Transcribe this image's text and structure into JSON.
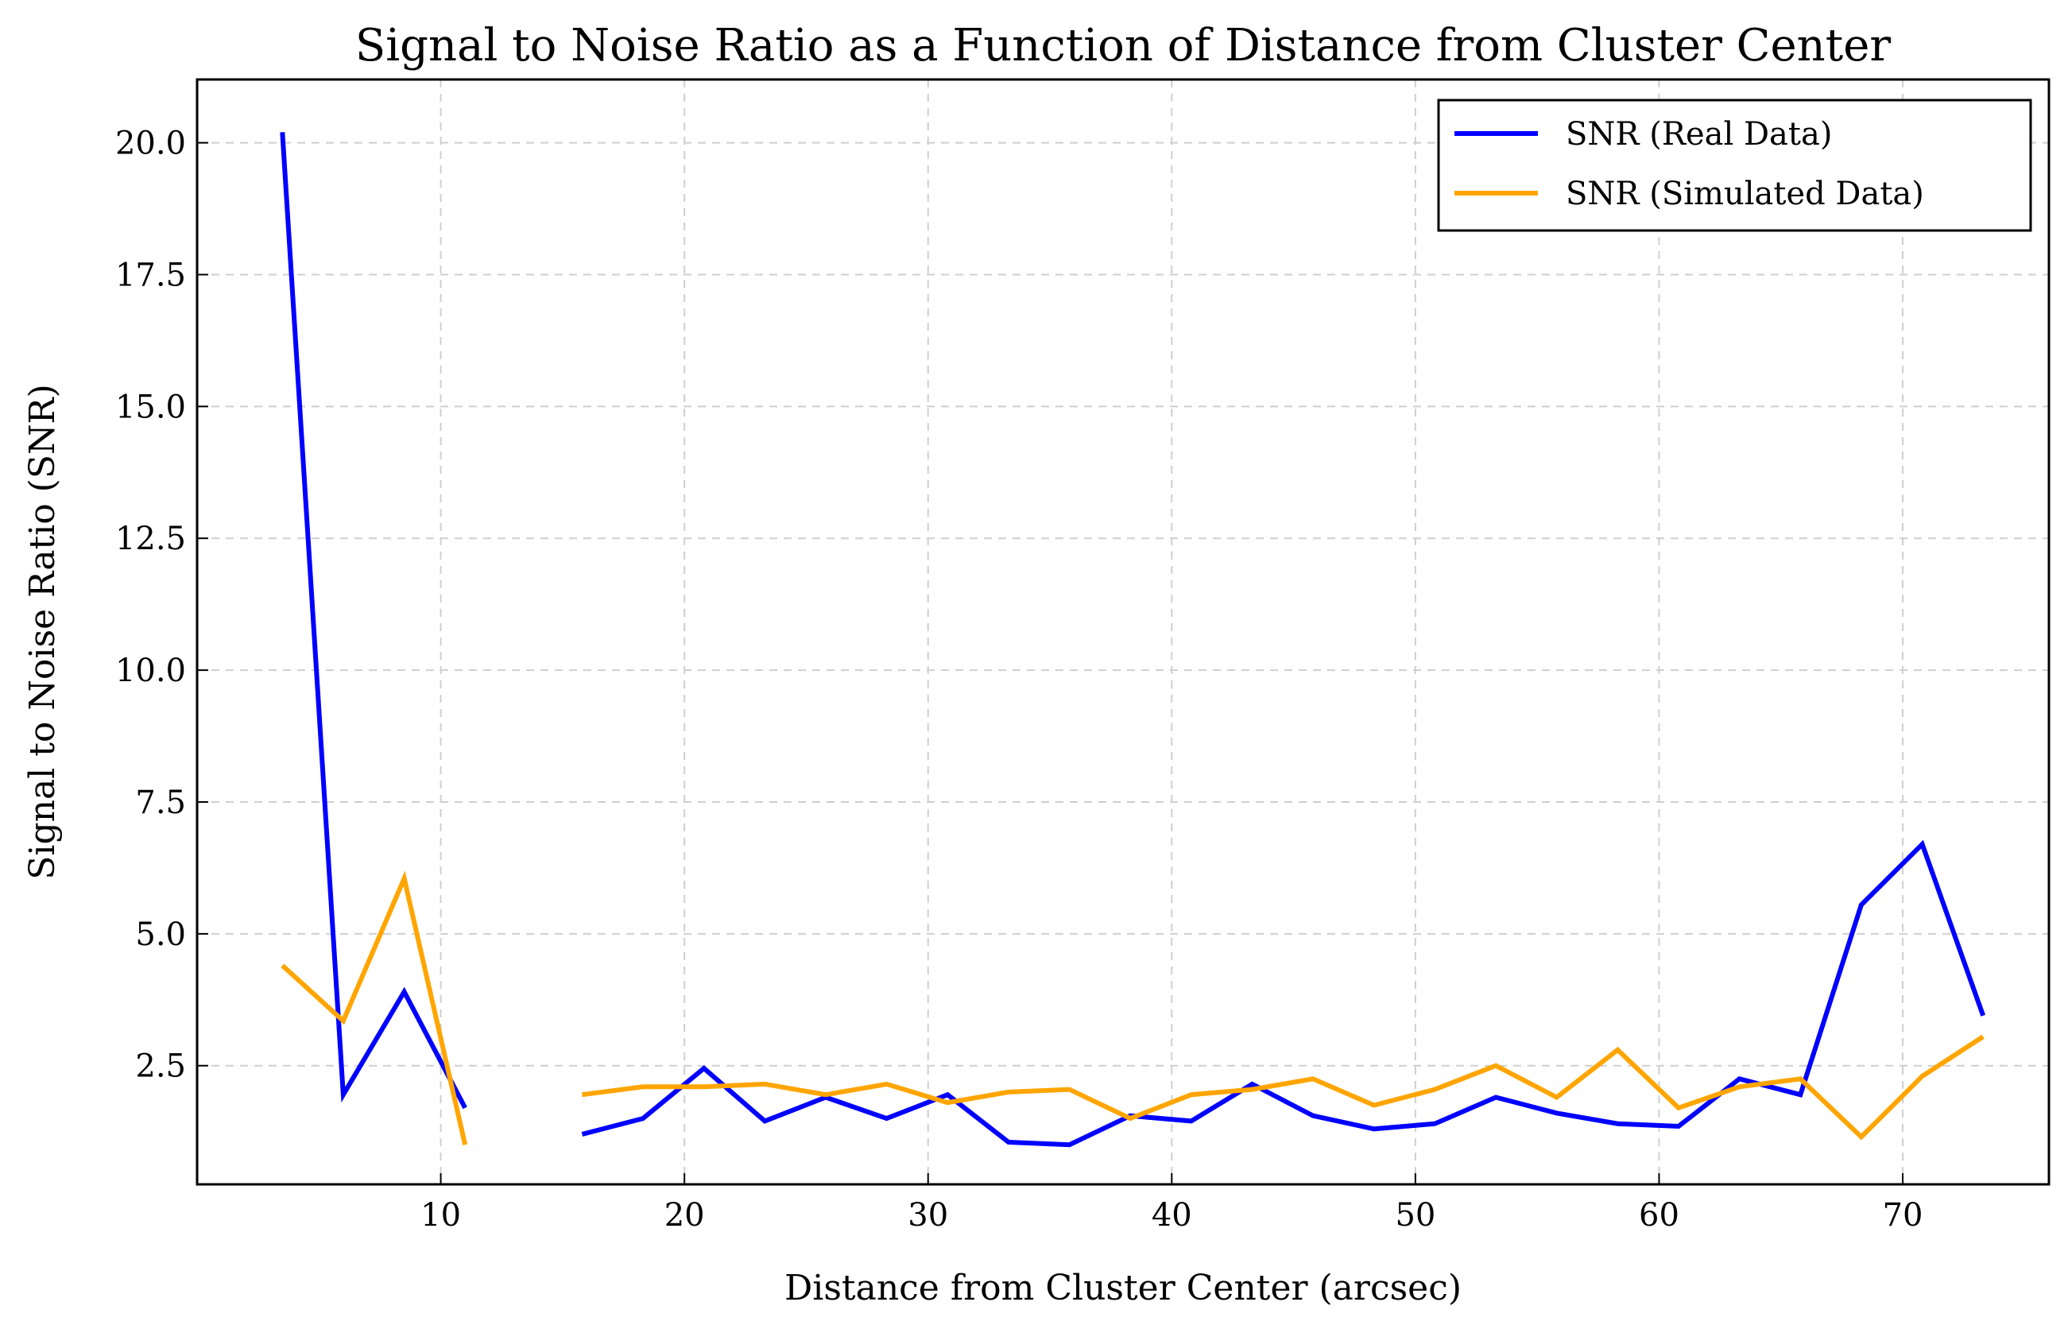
{
  "chart_data": {
    "type": "line",
    "title": "Signal to Noise Ratio as a Function of Distance from Cluster Center",
    "xlabel": "Distance from Cluster Center (arcsec)",
    "ylabel": "Signal to Noise Ratio (SNR)",
    "xlim": [
      0,
      76
    ],
    "ylim": [
      0.25,
      21.2
    ],
    "xticks": [
      10,
      20,
      30,
      40,
      50,
      60,
      70
    ],
    "xtick_labels": [
      "10",
      "20",
      "30",
      "40",
      "50",
      "60",
      "70"
    ],
    "yticks": [
      2.5,
      5.0,
      7.5,
      10.0,
      12.5,
      15.0,
      17.5,
      20.0
    ],
    "ytick_labels": [
      "2.5",
      "5.0",
      "7.5",
      "10.0",
      "12.5",
      "15.0",
      "17.5",
      "20.0"
    ],
    "grid": true,
    "legend_position": "top-right",
    "series": [
      {
        "name": "SNR (Real Data)",
        "color": "#0000ff",
        "segments": [
          {
            "x": [
              3.5,
              6.0,
              8.5,
              11.0
            ],
            "y": [
              20.2,
              1.95,
              3.9,
              1.7
            ]
          },
          {
            "x": [
              15.8,
              18.3,
              20.8,
              23.3,
              25.8,
              28.3,
              30.8,
              33.3,
              35.8,
              38.3,
              40.8,
              43.3,
              45.8,
              48.3,
              50.8,
              53.3,
              55.8,
              58.3,
              60.8,
              63.3,
              65.8,
              68.3,
              70.8,
              73.3
            ],
            "y": [
              1.2,
              1.5,
              2.45,
              1.45,
              1.9,
              1.5,
              1.95,
              1.05,
              1.0,
              1.55,
              1.45,
              2.15,
              1.55,
              1.3,
              1.4,
              1.9,
              1.6,
              1.4,
              1.35,
              2.25,
              1.95,
              5.55,
              6.7,
              3.45
            ]
          }
        ]
      },
      {
        "name": "SNR (Simulated Data)",
        "color": "#ffa500",
        "segments": [
          {
            "x": [
              3.5,
              6.0,
              8.5,
              11.0
            ],
            "y": [
              4.4,
              3.35,
              6.05,
              1.0
            ]
          },
          {
            "x": [
              15.8,
              18.3,
              20.8,
              23.3,
              25.8,
              28.3,
              30.8,
              33.3,
              35.8,
              38.3,
              40.8,
              43.3,
              45.8,
              48.3,
              50.8,
              53.3,
              55.8,
              58.3,
              60.8,
              63.3,
              65.8,
              68.3,
              70.8,
              73.3
            ],
            "y": [
              1.95,
              2.1,
              2.1,
              2.15,
              1.95,
              2.15,
              1.8,
              2.0,
              2.05,
              1.5,
              1.95,
              2.05,
              2.25,
              1.75,
              2.05,
              2.5,
              1.9,
              2.8,
              1.7,
              2.1,
              2.25,
              1.15,
              2.3,
              3.05
            ]
          }
        ]
      }
    ]
  }
}
